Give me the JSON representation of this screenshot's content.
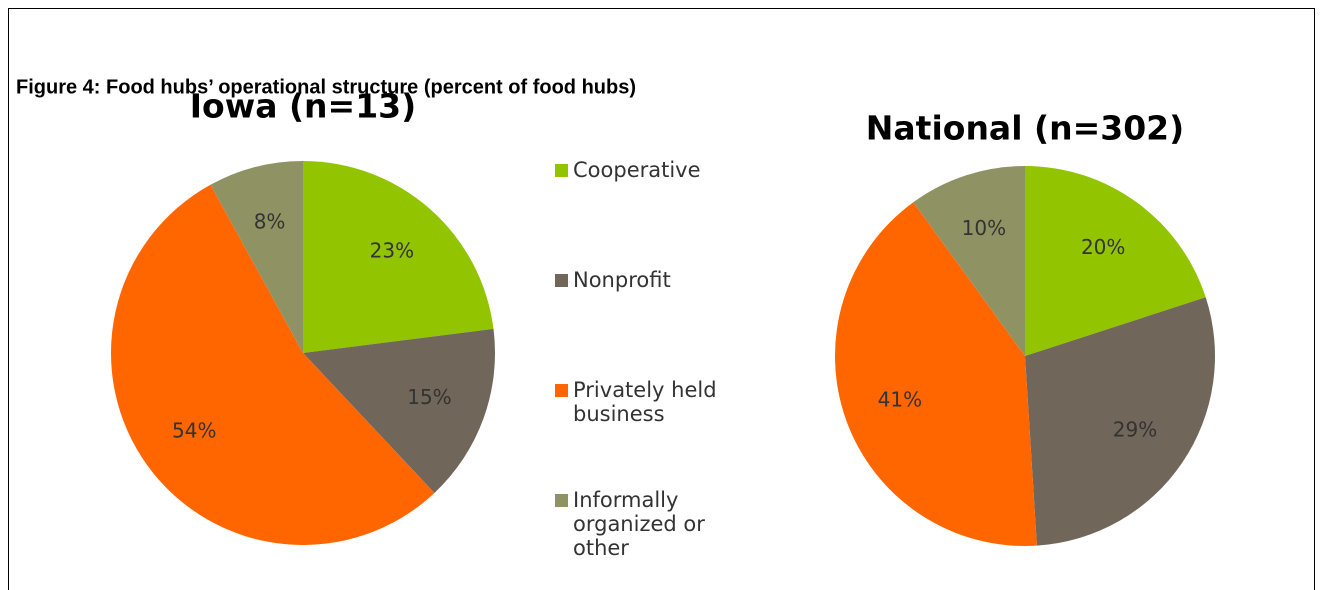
{
  "title": "Figure 4: Food hubs’ operational structure (percent of food hubs)",
  "chart_data": [
    {
      "type": "pie",
      "title": "Iowa (n=13)",
      "categories": [
        "Cooperative",
        "Nonprofit",
        "Privately held business",
        "Informally organized or other"
      ],
      "values": [
        23,
        15,
        54,
        8
      ],
      "value_labels": [
        "23%",
        "15%",
        "54%",
        "8%"
      ],
      "colors": [
        "#92c400",
        "#706659",
        "#ff6600",
        "#8f9363"
      ]
    },
    {
      "type": "pie",
      "title": "National (n=302)",
      "categories": [
        "Cooperative",
        "Nonprofit",
        "Privately held business",
        "Informally organized or other"
      ],
      "values": [
        20,
        29,
        41,
        10
      ],
      "value_labels": [
        "20%",
        "29%",
        "41%",
        "10%"
      ],
      "colors": [
        "#92c400",
        "#706659",
        "#ff6600",
        "#8f9363"
      ]
    }
  ]
}
